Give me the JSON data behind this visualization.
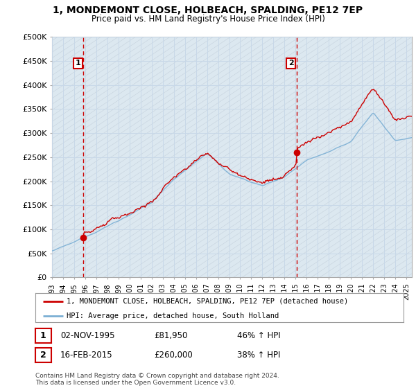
{
  "title": "1, MONDEMONT CLOSE, HOLBEACH, SPALDING, PE12 7EP",
  "subtitle": "Price paid vs. HM Land Registry's House Price Index (HPI)",
  "legend_line1": "1, MONDEMONT CLOSE, HOLBEACH, SPALDING, PE12 7EP (detached house)",
  "legend_line2": "HPI: Average price, detached house, South Holland",
  "transaction1_date": "02-NOV-1995",
  "transaction1_price": "£81,950",
  "transaction1_hpi": "46% ↑ HPI",
  "transaction2_date": "16-FEB-2015",
  "transaction2_price": "£260,000",
  "transaction2_hpi": "38% ↑ HPI",
  "footer": "Contains HM Land Registry data © Crown copyright and database right 2024.\nThis data is licensed under the Open Government Licence v3.0.",
  "ylim": [
    0,
    500000
  ],
  "yticks": [
    0,
    50000,
    100000,
    150000,
    200000,
    250000,
    300000,
    350000,
    400000,
    450000,
    500000
  ],
  "ytick_labels": [
    "£0",
    "£50K",
    "£100K",
    "£150K",
    "£200K",
    "£250K",
    "£300K",
    "£350K",
    "£400K",
    "£450K",
    "£500K"
  ],
  "sold_color": "#cc0000",
  "hpi_color": "#7bafd4",
  "vline_color": "#cc0000",
  "background_color": "#ffffff",
  "grid_color": "#c8d8e8",
  "plot_bg_color": "#dce8f0",
  "hatch_color": "#c0ccd8",
  "sale1_year": 1995.833,
  "sale1_price": 81950,
  "sale2_year": 2015.083,
  "sale2_price": 260000,
  "xmin": 1993,
  "xmax": 2025.5
}
